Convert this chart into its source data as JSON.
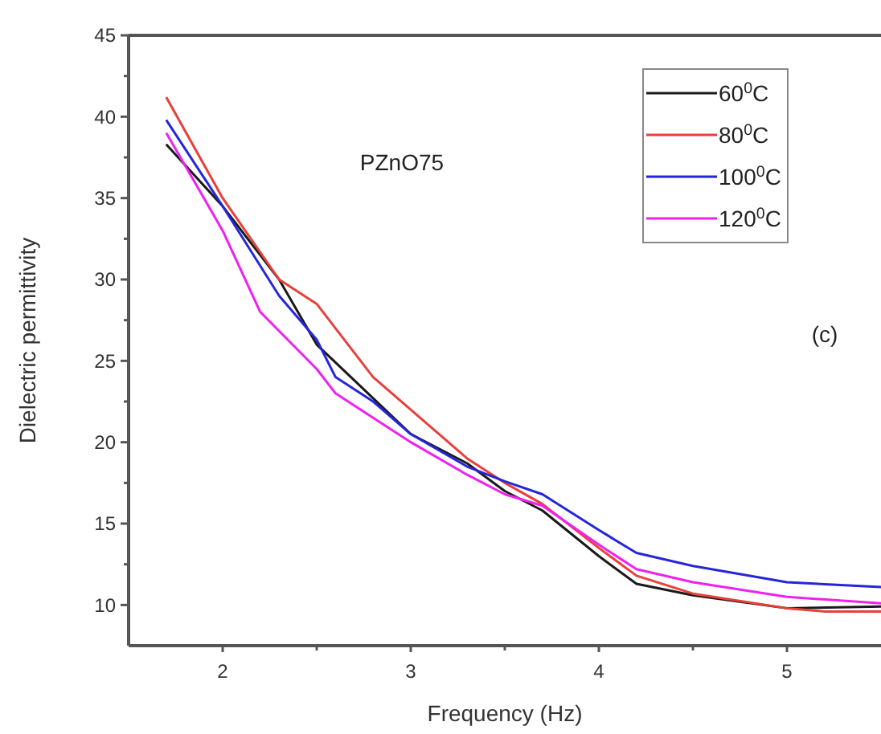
{
  "chart_data": {
    "type": "line",
    "xlabel": "Frequency (Hz)",
    "ylabel": "Dielectric permittivity",
    "annotations": [
      "PZnO75",
      "(c)"
    ],
    "xlim": [
      1.5,
      5.5
    ],
    "xticks": [
      2,
      3,
      4,
      5,
      {
        "value": 2.5,
        "label": null
      },
      {
        "value": 3.5,
        "label": null
      },
      {
        "value": 4.5,
        "label": null
      }
    ],
    "ylim": [
      7.5,
      45
    ],
    "yticks": [
      10,
      15,
      20,
      25,
      30,
      35,
      40,
      45,
      {
        "value": 12.5,
        "label": null
      },
      {
        "value": 17.5,
        "label": null
      },
      {
        "value": 22.5,
        "label": null
      },
      {
        "value": 27.5,
        "label": null
      },
      {
        "value": 32.5,
        "label": null
      },
      {
        "value": 37.5,
        "label": null
      },
      {
        "value": 42.5,
        "label": null
      }
    ],
    "grid": false,
    "legend": "top right",
    "marker": "none",
    "line_style": "solid",
    "series": [
      {
        "name": "60$^{0}$C",
        "color": "#1a1a1a",
        "x": [
          1.7,
          2.0,
          2.3,
          2.5,
          2.7,
          3.0,
          3.3,
          3.5,
          3.7,
          4.0,
          4.2,
          4.5,
          5.0,
          5.5
        ],
        "values": [
          38.3,
          34.5,
          30,
          26,
          23.8,
          20.5,
          18.7,
          17,
          15.8,
          13,
          11.3,
          10.6,
          9.8,
          9.9
        ]
      },
      {
        "name": "80$^{0}$C",
        "color": "#e8403a",
        "x": [
          1.7,
          2.0,
          2.3,
          2.5,
          2.6,
          2.8,
          3.0,
          3.3,
          3.5,
          3.7,
          4.0,
          4.2,
          4.5,
          5.0,
          5.2,
          5.5
        ],
        "values": [
          41.2,
          35,
          30,
          28.5,
          27,
          24,
          22,
          19,
          17.5,
          16.2,
          13.5,
          11.8,
          10.7,
          9.8,
          9.6,
          9.6
        ]
      },
      {
        "name": "100$^{0}$C",
        "color": "#2626d9",
        "x": [
          1.7,
          2.0,
          2.3,
          2.5,
          2.6,
          2.8,
          3.0,
          3.3,
          3.5,
          3.7,
          4.0,
          4.2,
          4.5,
          5.0,
          5.5
        ],
        "values": [
          39.8,
          34.5,
          29,
          26.3,
          24,
          22.5,
          20.5,
          18.5,
          17.6,
          16.8,
          14.6,
          13.2,
          12.4,
          11.4,
          11.1
        ]
      },
      {
        "name": "120$^{0}$C",
        "color": "#f020f0",
        "x": [
          1.7,
          2.0,
          2.2,
          2.5,
          2.6,
          2.8,
          3.0,
          3.3,
          3.5,
          3.7,
          4.0,
          4.2,
          4.5,
          5.0,
          5.5
        ],
        "values": [
          39,
          33,
          28,
          24.5,
          23,
          21.5,
          20,
          18,
          16.8,
          16.1,
          13.7,
          12.2,
          11.4,
          10.5,
          10.1
        ]
      }
    ]
  }
}
